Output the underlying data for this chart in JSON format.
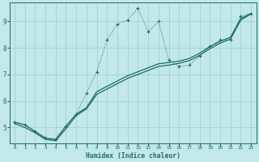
{
  "xlabel": "Humidex (Indice chaleur)",
  "ylabel": "",
  "bg_color": "#c2e8e8",
  "grid_color": "#9ccece",
  "line_color": "#1e6b6b",
  "xlim": [
    -0.5,
    23.5
  ],
  "ylim": [
    4.4,
    9.7
  ],
  "xticks": [
    0,
    1,
    2,
    3,
    4,
    5,
    6,
    7,
    8,
    9,
    10,
    11,
    12,
    13,
    14,
    15,
    16,
    17,
    18,
    19,
    20,
    21,
    22,
    23
  ],
  "yticks": [
    5,
    6,
    7,
    8,
    9
  ],
  "curve_dotted_x": [
    0,
    1,
    2,
    3,
    4,
    5,
    6,
    7,
    8,
    9,
    10,
    11,
    12,
    13,
    14,
    15,
    16,
    17,
    18,
    19,
    20,
    21,
    22,
    23
  ],
  "curve_dotted_y": [
    5.2,
    5.1,
    4.85,
    4.6,
    4.55,
    5.05,
    5.5,
    6.3,
    7.1,
    8.3,
    8.9,
    9.05,
    9.5,
    8.6,
    9.0,
    7.55,
    7.3,
    7.35,
    7.7,
    8.05,
    8.3,
    8.3,
    9.2,
    9.3
  ],
  "curve_solid1_x": [
    0,
    1,
    2,
    3,
    4,
    5,
    6,
    7,
    8,
    9,
    10,
    11,
    12,
    13,
    14,
    15,
    16,
    17,
    18,
    19,
    20,
    21,
    22,
    23
  ],
  "curve_solid1_y": [
    5.2,
    5.1,
    4.85,
    4.6,
    4.55,
    5.05,
    5.5,
    5.75,
    6.35,
    6.55,
    6.75,
    6.95,
    7.1,
    7.25,
    7.4,
    7.45,
    7.5,
    7.6,
    7.8,
    8.05,
    8.25,
    8.4,
    9.1,
    9.3
  ],
  "curve_solid2_x": [
    0,
    1,
    2,
    3,
    4,
    5,
    6,
    7,
    8,
    9,
    10,
    11,
    12,
    13,
    14,
    15,
    16,
    17,
    18,
    19,
    20,
    21,
    22,
    23
  ],
  "curve_solid2_y": [
    5.15,
    5.0,
    4.8,
    4.55,
    4.5,
    4.95,
    5.45,
    5.7,
    6.25,
    6.45,
    6.65,
    6.85,
    7.0,
    7.15,
    7.3,
    7.35,
    7.42,
    7.52,
    7.72,
    7.97,
    8.18,
    8.33,
    9.05,
    9.28
  ]
}
